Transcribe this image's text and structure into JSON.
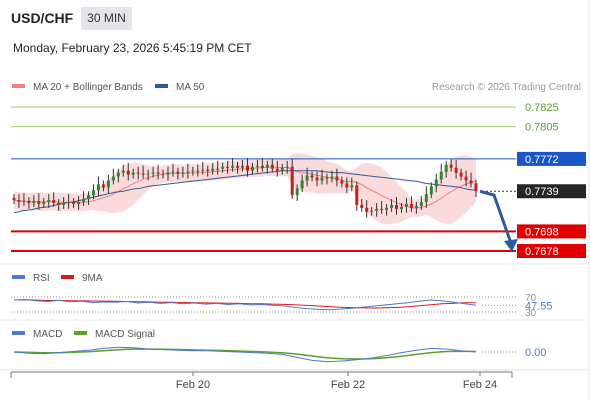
{
  "header": {
    "symbol": "USD/CHF",
    "timeframe": "30 MIN",
    "datetime": "Monday, February 23, 2026 5:45:19 PM CET"
  },
  "chart_data": [
    {
      "type": "candlestick",
      "title": "",
      "legend": [
        {
          "label": "MA 20 + Bollinger Bands",
          "color": "#f08080"
        },
        {
          "label": "MA 50",
          "color": "#2e5c9a"
        }
      ],
      "legend_placement": "top-left",
      "credit": "Research © 2026 Trading Central",
      "ylim": [
        0.7665,
        0.784
      ],
      "grid": false,
      "last_price": 0.7739,
      "levels": [
        {
          "value": 0.7825,
          "label": "0.7825",
          "kind": "resistance",
          "color": "#9acd68"
        },
        {
          "value": 0.7805,
          "label": "0.7805",
          "kind": "resistance",
          "color": "#9acd68"
        },
        {
          "value": 0.7772,
          "label": "0.7772",
          "kind": "pivot",
          "color": "#1a56c9"
        },
        {
          "value": 0.7698,
          "label": "0.7698",
          "kind": "support",
          "color": "#e00000"
        },
        {
          "value": 0.7678,
          "label": "0.7678",
          "kind": "support",
          "color": "#e00000"
        }
      ],
      "close_series": [
        0.773,
        0.7728,
        0.7729,
        0.7727,
        0.7729,
        0.7726,
        0.7728,
        0.773,
        0.7727,
        0.7725,
        0.7727,
        0.7728,
        0.7726,
        0.7728,
        0.7731,
        0.7735,
        0.774,
        0.7746,
        0.7743,
        0.775,
        0.7754,
        0.7758,
        0.776,
        0.7756,
        0.7758,
        0.7757,
        0.7756,
        0.7757,
        0.7758,
        0.7757,
        0.7756,
        0.7758,
        0.7759,
        0.7757,
        0.7758,
        0.7759,
        0.776,
        0.776,
        0.7761,
        0.776,
        0.7762,
        0.7762,
        0.7764,
        0.7763,
        0.7765,
        0.7763,
        0.7765,
        0.776,
        0.7764,
        0.7765,
        0.7763,
        0.7766,
        0.7762,
        0.776,
        0.7763,
        0.7764,
        0.7735,
        0.7742,
        0.775,
        0.7755,
        0.7753,
        0.775,
        0.7753,
        0.7752,
        0.7754,
        0.775,
        0.7747,
        0.7743,
        0.7745,
        0.7725,
        0.7722,
        0.7718,
        0.7719,
        0.7721,
        0.772,
        0.7722,
        0.7725,
        0.7721,
        0.7723,
        0.7726,
        0.7722,
        0.7724,
        0.7728,
        0.7736,
        0.7744,
        0.7751,
        0.7759,
        0.7766,
        0.7763,
        0.7758,
        0.7754,
        0.775,
        0.7747,
        0.7739
      ],
      "ma50_series": [
        0.7717,
        0.7719,
        0.772,
        0.7722,
        0.7723,
        0.7725,
        0.7727,
        0.7728,
        0.773,
        0.7732,
        0.7734,
        0.7736,
        0.7738,
        0.7739,
        0.7741,
        0.7742,
        0.7744,
        0.7745,
        0.7746,
        0.7747,
        0.7748,
        0.7749,
        0.775,
        0.7751,
        0.7752,
        0.7753,
        0.7754,
        0.7755,
        0.7756,
        0.7757,
        0.7758,
        0.7759,
        0.776,
        0.776,
        0.776,
        0.776,
        0.776,
        0.7759,
        0.7758,
        0.7758,
        0.7757,
        0.7756,
        0.7755,
        0.7754,
        0.7753,
        0.7752,
        0.7751,
        0.775,
        0.7749,
        0.7747,
        0.7746,
        0.7745,
        0.7744,
        0.7743,
        0.7741,
        0.774
      ],
      "projection": {
        "from": 0.7739,
        "via": 0.7735,
        "to": 0.7678
      }
    },
    {
      "type": "line",
      "indicator": "RSI",
      "legend": [
        {
          "label": "RSI",
          "color": "#4f78d0"
        },
        {
          "label": "9MA",
          "color": "#d61a1a"
        }
      ],
      "levels": [
        {
          "value": 70,
          "label": "70"
        },
        {
          "value": 30,
          "label": "30"
        }
      ],
      "last_value": 47.55,
      "last_label": "47.55"
    },
    {
      "type": "line",
      "indicator": "MACD",
      "legend": [
        {
          "label": "MACD",
          "color": "#4f78d0"
        },
        {
          "label": "MACD Signal",
          "color": "#5aa02c"
        }
      ],
      "last_value": 0.0,
      "last_label": "0.00"
    }
  ],
  "x_axis": {
    "tick_labels": [
      "Feb 20",
      "Feb 22",
      "Feb 24"
    ]
  }
}
